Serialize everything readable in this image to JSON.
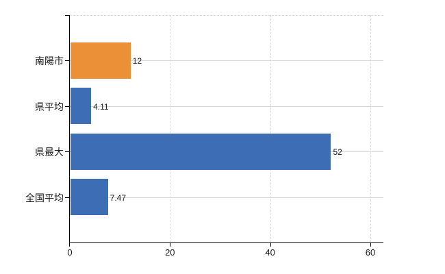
{
  "chart_data": {
    "type": "bar",
    "orientation": "horizontal",
    "title": "",
    "xlabel": "",
    "ylabel": "",
    "categories": [
      "南陽市",
      "県平均",
      "県最大",
      "全国平均"
    ],
    "values": [
      12,
      4.11,
      52,
      7.47
    ],
    "value_labels": [
      "12",
      "4.11",
      "52",
      "7.47"
    ],
    "bar_colors": [
      "#ec9037",
      "#3d6db5",
      "#3d6db5",
      "#3d6db5"
    ],
    "x_tick_values": [
      0,
      20,
      40,
      60
    ],
    "x_tick_labels": [
      "0",
      "20",
      "40",
      "60"
    ],
    "xlim": [
      0,
      62.6
    ],
    "grid": {
      "vertical_style": "dashed",
      "horizontal_style": "solid",
      "color": "#d9d9d9",
      "top_border": "dashed"
    },
    "axis_color": "#000000",
    "text_color": "#1a1a1a",
    "background": "#ffffff",
    "legend_position": "none"
  }
}
